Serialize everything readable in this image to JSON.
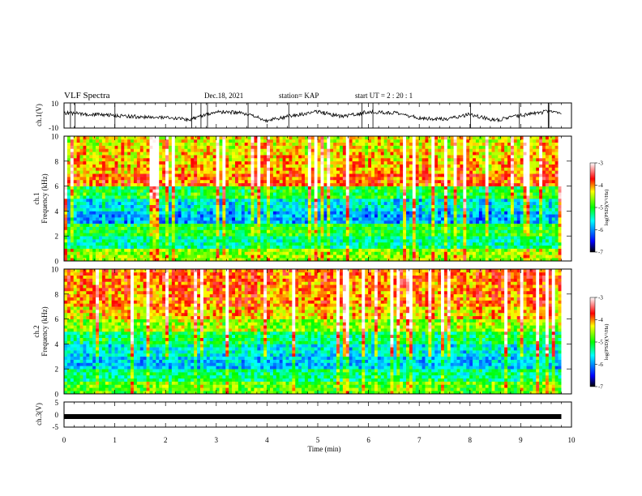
{
  "header": {
    "title": "VLF Spectra",
    "date": "Dec.18, 2021",
    "station": "station= KAP",
    "start_ut": "start  UT =   2 : 20 : 1"
  },
  "x_axis": {
    "label": "Time  (min)",
    "ticks": [
      "0",
      "1",
      "2",
      "3",
      "4",
      "5",
      "6",
      "7",
      "8",
      "9",
      "10"
    ],
    "range": [
      0,
      10
    ],
    "data_end": 9.8
  },
  "panels": {
    "ch1_waveform": {
      "ylabel": "ch.1(V)",
      "ticks": [
        "10",
        "-10"
      ],
      "range": [
        -10,
        10
      ]
    },
    "ch1_spectrogram": {
      "ylabel_channel": "ch.1",
      "ylabel": "Frequency  (kHz)",
      "ticks": [
        "10",
        "8",
        "6",
        "4",
        "2",
        "0"
      ],
      "range": [
        0,
        10
      ],
      "colorbar": {
        "label": "log(PSD)(V²/Hz)",
        "ticks": [
          "-3",
          "-4",
          "-5",
          "-6",
          "-7"
        ],
        "range": [
          -7,
          -3
        ],
        "colormap": [
          "#000000",
          "#0000ff",
          "#00ffff",
          "#00ff00",
          "#ffff00",
          "#ff0000",
          "#ffffff"
        ]
      }
    },
    "ch2_spectrogram": {
      "ylabel_channel": "ch.2",
      "ylabel": "Frequency  (kHz)",
      "ticks": [
        "10",
        "8",
        "6",
        "4",
        "2",
        "0"
      ],
      "range": [
        0,
        10
      ],
      "colorbar": {
        "label": "log(PSD)(V²/Hz)",
        "ticks": [
          "-3",
          "-4",
          "-5",
          "-6",
          "-7"
        ],
        "range": [
          -7,
          -3
        ],
        "colormap": [
          "#000000",
          "#0000ff",
          "#00ffff",
          "#00ff00",
          "#ffff00",
          "#ff0000",
          "#ffffff"
        ]
      }
    },
    "ch3_waveform": {
      "ylabel": "ch.3(V)",
      "ticks": [
        "5",
        "0",
        "-5"
      ],
      "range": [
        -5,
        5
      ],
      "value": -0.8
    }
  },
  "chart_data": [
    {
      "type": "line",
      "title": "VLF Spectra",
      "xlabel": "Time  (min)",
      "ylabel": "ch.1(V)",
      "xlim": [
        0,
        10
      ],
      "ylim": [
        -10,
        10
      ],
      "series": [
        {
          "x": [
            0,
            0.5,
            1,
            1.5,
            2,
            2.5,
            3,
            3.5,
            4,
            4.5,
            5,
            5.5,
            6,
            6.5,
            7,
            7.5,
            8,
            8.5,
            9,
            9.5,
            9.8
          ],
          "values": [
            2,
            1,
            0,
            -1,
            -2,
            -3,
            3,
            2,
            -4,
            0,
            3,
            -1,
            3,
            2,
            -2,
            -3,
            1,
            -4,
            0,
            3,
            2
          ]
        }
      ]
    },
    {
      "type": "heatmap",
      "xlabel": "Time  (min)",
      "ylabel": "Frequency  (kHz)",
      "xlim": [
        0,
        10
      ],
      "ylim": [
        0,
        10
      ],
      "colorbar_label": "log(PSD)(V²/Hz)",
      "zlim": [
        -7,
        -3
      ],
      "channel": "ch.1",
      "mean_logpsd_by_band": {
        "freq_khz": [
          0.5,
          1.5,
          2.5,
          3.5,
          4.5,
          5.5,
          6.5,
          7.5,
          8.5,
          9.5
        ],
        "values": [
          -4.6,
          -5.4,
          -5.0,
          -5.9,
          -5.6,
          -5.0,
          -3.9,
          -4.1,
          -4.2,
          -4.3
        ]
      }
    },
    {
      "type": "heatmap",
      "xlabel": "Time  (min)",
      "ylabel": "Frequency  (kHz)",
      "xlim": [
        0,
        10
      ],
      "ylim": [
        0,
        10
      ],
      "colorbar_label": "log(PSD)(V²/Hz)",
      "zlim": [
        -7,
        -3
      ],
      "channel": "ch.2",
      "mean_logpsd_by_band": {
        "freq_khz": [
          0.5,
          1.5,
          2.5,
          3.5,
          4.5,
          5.5,
          6.5,
          7.5,
          8.5,
          9.5
        ],
        "values": [
          -4.8,
          -5.3,
          -5.8,
          -5.6,
          -5.2,
          -4.6,
          -4.2,
          -4.0,
          -4.0,
          -3.9
        ]
      }
    },
    {
      "type": "line",
      "xlabel": "Time  (min)",
      "ylabel": "ch.3(V)",
      "xlim": [
        0,
        10
      ],
      "ylim": [
        -5,
        5
      ],
      "series": [
        {
          "x": [
            0,
            9.8
          ],
          "values": [
            -0.8,
            -0.8
          ]
        }
      ]
    }
  ]
}
